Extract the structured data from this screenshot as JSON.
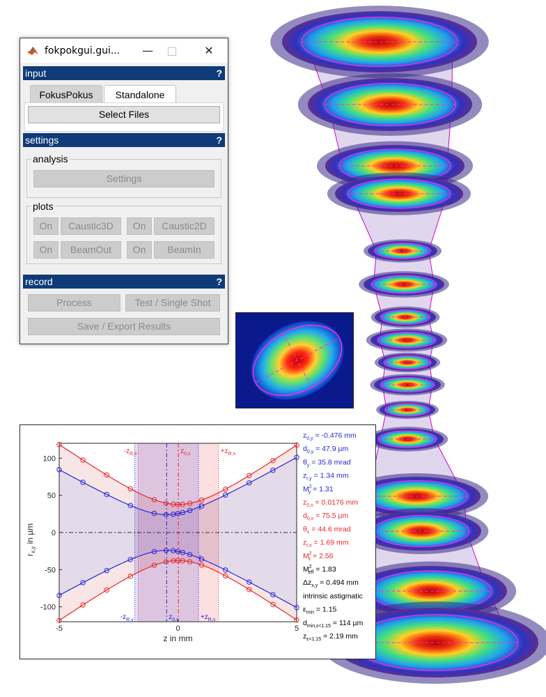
{
  "window": {
    "title": "fokpokgui.gui...",
    "minimize_icon": "minimize-icon",
    "maximize_icon": "maximize-icon",
    "close_icon": "close-icon"
  },
  "input": {
    "header": "input",
    "help": "?",
    "tabs": [
      {
        "label": "FokusPokus"
      },
      {
        "label": "Standalone"
      }
    ],
    "select_files": "Select Files"
  },
  "settings": {
    "header": "settings",
    "help": "?",
    "analysis_label": "analysis",
    "settings_button": "Settings",
    "plots_label": "plots",
    "plot_rows": [
      [
        {
          "toggle": "On",
          "name": "Caustic3D"
        },
        {
          "toggle": "On",
          "name": "Caustic2D"
        }
      ],
      [
        {
          "toggle": "On",
          "name": "BeamOut"
        },
        {
          "toggle": "On",
          "name": "BeamIn"
        }
      ]
    ]
  },
  "record": {
    "header": "record",
    "help": "?",
    "process": "Process",
    "test": "Test / Single Shot",
    "save": "Save / Export Results"
  },
  "colors": {
    "red": "#e8262a",
    "blue": "#2626d9",
    "header": "#0f3b78"
  },
  "chart_data": {
    "type": "line",
    "xlabel": "z in mm",
    "ylabel_base": "r",
    "ylabel_sub": "x,y",
    "ylabel_rest": " in µm",
    "xlim": [
      -5,
      5
    ],
    "ylim": [
      -120,
      120
    ],
    "xticks": [
      "-5",
      "0",
      "5"
    ],
    "yticks": [
      "100",
      "50",
      "0",
      "-50",
      "-100"
    ],
    "markers": {
      "z0x": {
        "base": "z",
        "sub": "0,x"
      },
      "z0y": {
        "base": "z",
        "sub": "0,y"
      },
      "zRx_minus": {
        "base": "-z",
        "sub": "R,x"
      },
      "zRx_plus": {
        "base": "+z",
        "sub": "R,x"
      },
      "zRy_minus": {
        "base": "-z",
        "sub": "R,y"
      },
      "zRy_plus": {
        "base": "+z",
        "sub": "R,y"
      }
    },
    "series": [
      {
        "name": "x",
        "color": "#e8262a",
        "w0": 37.8,
        "z0": 0.0176,
        "zR": 1.69,
        "points_z": [
          -5,
          -4,
          -3,
          -2,
          -1,
          -0.5,
          -0.2,
          0,
          0.2,
          0.5,
          1,
          2,
          3,
          4,
          5
        ]
      },
      {
        "name": "y",
        "color": "#2626d9",
        "w0": 24.0,
        "z0": -0.476,
        "zR": 1.34,
        "points_z": [
          -5,
          -4,
          -3,
          -2,
          -1,
          -0.5,
          -0.2,
          0,
          0.2,
          0.5,
          1,
          2,
          3,
          4,
          5
        ]
      }
    ],
    "annotations": [
      {
        "color": "#2626d9",
        "base": "z",
        "sub": "0,y",
        "sup": "",
        "value": " = -0.476 mm"
      },
      {
        "color": "#2626d9",
        "base": "d",
        "sub": "0,y",
        "sup": "",
        "value": " = 47.9 µm"
      },
      {
        "color": "#2626d9",
        "base": "θ",
        "sub": "y",
        "sup": "",
        "value": " = 35.8 mrad"
      },
      {
        "color": "#2626d9",
        "base": "z",
        "sub": "r,y",
        "sup": "",
        "value": " = 1.34 mm"
      },
      {
        "color": "#2626d9",
        "base": "M",
        "sub": "y",
        "sup": "2",
        "value": " = 1.31"
      },
      {
        "color": "#e8262a",
        "base": "z",
        "sub": "0,x",
        "sup": "",
        "value": " = 0.0176 mm"
      },
      {
        "color": "#e8262a",
        "base": "d",
        "sub": "0,x",
        "sup": "",
        "value": " = 75.5 µm"
      },
      {
        "color": "#e8262a",
        "base": "θ",
        "sub": "x",
        "sup": "",
        "value": " = 44.6 mrad"
      },
      {
        "color": "#e8262a",
        "base": "z",
        "sub": "r,x",
        "sup": "",
        "value": " = 1.69 mm"
      },
      {
        "color": "#e8262a",
        "base": "M",
        "sub": "x",
        "sup": "2",
        "value": " = 2.56"
      },
      {
        "color": "#000000",
        "base": "M",
        "sub": "eff",
        "sup": "2",
        "value": " = 1.83"
      },
      {
        "color": "#000000",
        "base": "Δz",
        "sub": "x,y",
        "sup": "",
        "value": " = 0.494 mm"
      },
      {
        "color": "#000000",
        "base": "intrinsic astigmatic",
        "sub": "",
        "sup": "",
        "value": ""
      },
      {
        "color": "#000000",
        "base": "ε",
        "sub": "min",
        "sup": "",
        "value": " = 1.15"
      },
      {
        "color": "#000000",
        "base": "d",
        "sub": "min,ε<1.15",
        "sup": "",
        "value": " = 114 µm"
      },
      {
        "color": "#000000",
        "base": "z",
        "sub": "ε<1.15",
        "sup": "",
        "value": " = 2.19 mm"
      }
    ]
  }
}
